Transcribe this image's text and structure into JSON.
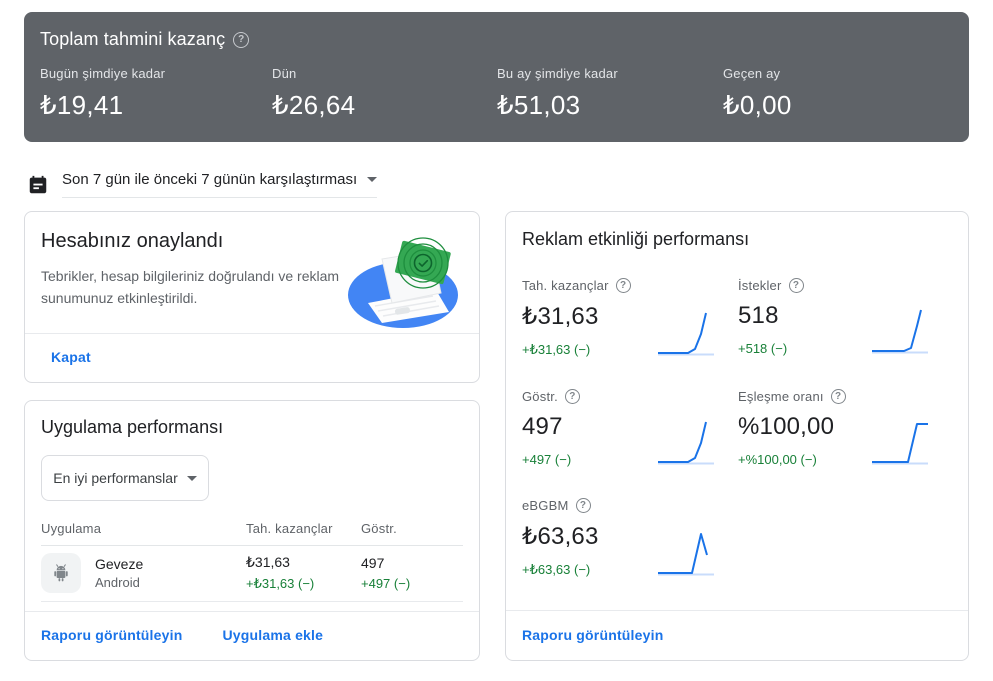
{
  "colors": {
    "summary_bg": "#5f6368",
    "link_blue": "#1a73e8",
    "delta_green": "#188038",
    "spark_line": "#1a73e8",
    "spark_base": "#c9dcfb",
    "text_primary": "#202124",
    "text_secondary": "#5f6368",
    "card_border": "#dadce0"
  },
  "icons": {
    "help_glyph": "?"
  },
  "summary": {
    "title": "Toplam tahmini kazanç",
    "metrics": [
      {
        "label": "Bugün şimdiye kadar",
        "value": "₺19,41"
      },
      {
        "label": "Dün",
        "value": "₺26,64"
      },
      {
        "label": "Bu ay şimdiye kadar",
        "value": "₺51,03"
      },
      {
        "label": "Geçen ay",
        "value": "₺0,00"
      }
    ]
  },
  "date_selector": {
    "label": "Son 7 gün ile önceki 7 günün karşılaştırması"
  },
  "account_card": {
    "title": "Hesabınız onaylandı",
    "body": "Tebrikler, hesap bilgileriniz doğrulandı ve reklam sunumunuz etkinleştirildi.",
    "dismiss_label": "Kapat"
  },
  "app_performance": {
    "title": "Uygulama performansı",
    "filter_value": "En iyi performanslar",
    "headers": {
      "app": "Uygulama",
      "earnings": "Tah. kazançlar",
      "impressions": "Göstr."
    },
    "rows": [
      {
        "name": "Geveze",
        "platform": "Android",
        "earnings": "₺31,63",
        "earnings_delta": "+₺31,63 (−)",
        "impressions": "497",
        "impressions_delta": "+497 (−)"
      }
    ],
    "view_report_label": "Raporu görüntüleyin",
    "add_app_label": "Uygulama ekle"
  },
  "ad_activity": {
    "title": "Reklam etkinliği performansı",
    "metrics": [
      {
        "label": "Tah. kazançlar",
        "value": "₺31,63",
        "delta": "+₺31,63 (−)",
        "spark": {
          "line": "2,45 32,45 39,41 45,26 50,5",
          "base": "2,46.5 58,46.5"
        }
      },
      {
        "label": "İstekler",
        "value": "518",
        "delta": "+518 (−)",
        "spark": {
          "line": "2,45 34,45 41,42 47,20 51,4",
          "base": "2,46.5 58,46.5"
        }
      },
      {
        "label": "Göstr.",
        "value": "497",
        "delta": "+497 (−)",
        "spark": {
          "line": "2,45 32,45 39,41 45,26 50,5",
          "base": "2,46.5 58,46.5"
        }
      },
      {
        "label": "Eşleşme oranı",
        "value": "%100,00",
        "delta": "+%100,00 (−)",
        "spark": {
          "line": "2,45 38,45 47,7 58,7",
          "base": "2,46.5 58,46.5"
        }
      },
      {
        "label": "eBGBM",
        "value": "₺63,63",
        "delta": "+₺63,63 (−)",
        "spark": {
          "line": "2,45 36,45 45,6 51,27",
          "base": "2,46.5 58,46.5"
        }
      }
    ],
    "view_report_label": "Raporu görüntüleyin"
  }
}
